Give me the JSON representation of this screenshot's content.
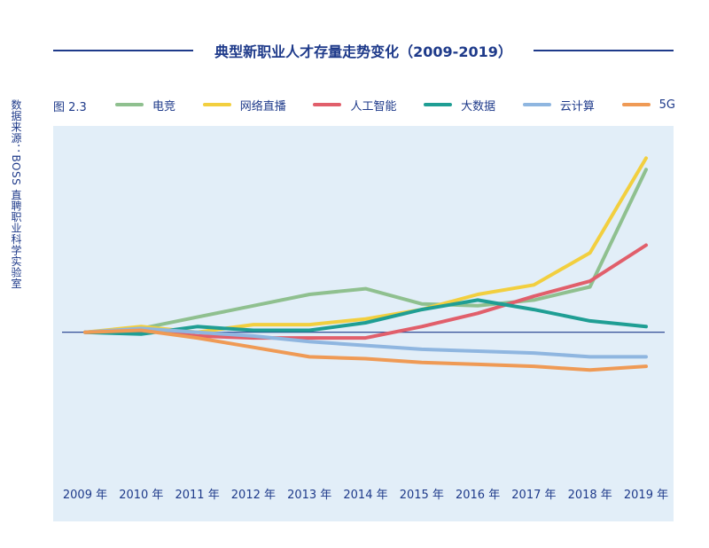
{
  "title": "典型新职业人才存量走势变化（2009-2019）",
  "source_note": "数据来源：BOSS 直聘职业科学实验室",
  "figure_label": "图 2.3",
  "chart_data": {
    "type": "line",
    "title": "典型新职业人才存量走势变化（2009-2019）",
    "xlabel": "",
    "ylabel": "",
    "categories": [
      "2009 年",
      "2010 年",
      "2011 年",
      "2012 年",
      "2013 年",
      "2014 年",
      "2015 年",
      "2016 年",
      "2017 年",
      "2018 年",
      "2019 年"
    ],
    "ylim": [
      -55,
      95
    ],
    "grid": false,
    "legend_position": "top",
    "series": [
      {
        "name": "电竞",
        "color": "#8fc08f",
        "values": [
          0,
          2,
          8,
          14,
          20,
          23,
          15,
          14,
          17,
          24,
          86
        ]
      },
      {
        "name": "网络直播",
        "color": "#f2cf3f",
        "values": [
          0,
          3,
          0,
          4,
          4,
          7,
          12,
          20,
          25,
          42,
          92
        ]
      },
      {
        "name": "人工智能",
        "color": "#e15f6b",
        "values": [
          0,
          1,
          -2,
          -3,
          -3,
          -3,
          3,
          10,
          19,
          27,
          46
        ]
      },
      {
        "name": "大数据",
        "color": "#1f9e94",
        "values": [
          0,
          -1,
          3,
          1,
          1,
          5,
          12,
          17,
          12,
          6,
          3
        ]
      },
      {
        "name": "云计算",
        "color": "#8fb6e0",
        "values": [
          0,
          2,
          0,
          -2,
          -5,
          -7,
          -9,
          -10,
          -11,
          -13,
          -13
        ]
      },
      {
        "name": "5G",
        "color": "#ef9a55",
        "values": [
          0,
          1,
          -3,
          -8,
          -13,
          -14,
          -16,
          -17,
          -18,
          -20,
          -18
        ]
      }
    ]
  }
}
